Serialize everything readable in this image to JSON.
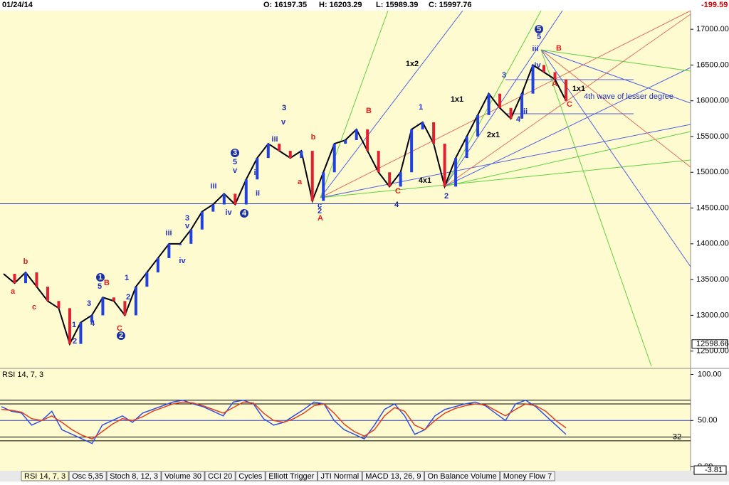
{
  "header": {
    "date": "01/24/14",
    "open": "O: 16197.35",
    "high": "H: 16203.29",
    "low": "L: 15989.39",
    "close": "C: 15997.76",
    "change": "-199.59"
  },
  "chart_data": [
    {
      "type": "line",
      "color": "#000000",
      "values": [
        13580,
        13450,
        13600,
        13400,
        13200,
        13100,
        12600,
        12900,
        13000,
        13250,
        13200,
        13000,
        13400,
        13600,
        13800,
        14000,
        14000,
        14200,
        14450,
        14550,
        14700,
        14550,
        14900,
        15200,
        15400,
        15300,
        15200,
        15300,
        14600,
        15000,
        15400,
        15450,
        15600,
        15300,
        15000,
        14800,
        15000,
        15600,
        15700,
        15400,
        14800,
        15200,
        15500,
        15800,
        16100,
        15900,
        15750,
        16100,
        16500,
        16400,
        16300,
        16000
      ],
      "ylim": [
        12268,
        17260
      ],
      "yticks": [
        {
          "value": 12500,
          "label": "12500.00"
        },
        {
          "value": 13000,
          "label": "13000.00"
        },
        {
          "value": 13500,
          "label": "13500.00"
        },
        {
          "value": 14000,
          "label": "14000.00"
        },
        {
          "value": 14500,
          "label": "14500.00"
        },
        {
          "value": 15000,
          "label": "15000.00"
        },
        {
          "value": 15500,
          "label": "15500.00"
        },
        {
          "value": 16000,
          "label": "16000.00"
        },
        {
          "value": 16500,
          "label": "16500.00"
        },
        {
          "value": 17000,
          "label": "17000.00"
        }
      ],
      "marker": {
        "value": 12598.66,
        "label": "12598.66"
      },
      "hline": 14560
    },
    {
      "type": "line",
      "title": "RSI 14, 7, 3",
      "series": [
        {
          "name": "RSI",
          "color": "#3050e0",
          "values": [
            65,
            60,
            58,
            45,
            50,
            60,
            40,
            35,
            30,
            25,
            45,
            50,
            55,
            48,
            58,
            62,
            66,
            70,
            72,
            68,
            65,
            60,
            55,
            70,
            72,
            68,
            52,
            45,
            48,
            55,
            62,
            70,
            68,
            50,
            40,
            35,
            30,
            45,
            62,
            68,
            55,
            35,
            40,
            55,
            62,
            65,
            68,
            70,
            66,
            58,
            50,
            68,
            72,
            65,
            55,
            45,
            35
          ]
        },
        {
          "name": "Signal",
          "color": "#e04020",
          "values": [
            62,
            61,
            59,
            52,
            50,
            55,
            48,
            40,
            34,
            30,
            38,
            46,
            52,
            50,
            54,
            60,
            64,
            68,
            70,
            69,
            66,
            62,
            58,
            64,
            70,
            69,
            58,
            50,
            48,
            52,
            58,
            66,
            68,
            58,
            46,
            38,
            33,
            40,
            55,
            64,
            60,
            45,
            40,
            50,
            58,
            63,
            66,
            68,
            67,
            61,
            55,
            62,
            68,
            66,
            60,
            50,
            42
          ]
        }
      ],
      "ylim": [
        -3,
        105
      ],
      "yticks": [
        {
          "value": 100,
          "label": "100.00"
        },
        {
          "value": 50,
          "label": "50.00"
        },
        {
          "value": 0,
          "label": "0.00"
        }
      ],
      "guides": [
        72,
        68,
        32,
        28
      ],
      "last": {
        "value": -3.81,
        "label": "-3.81"
      },
      "level_label": "32"
    }
  ],
  "annotations": [
    "a",
    "b",
    "c",
    "1",
    "5",
    "B",
    "3",
    "4",
    "1",
    "2",
    "C",
    "2",
    "1",
    "2",
    "iii",
    "iv",
    "v",
    "3",
    "iii",
    "iv",
    "v",
    "5",
    "3",
    "i",
    "ii",
    "4",
    "3",
    "v",
    "iii",
    "b",
    "a",
    "c",
    "2",
    "A",
    "4",
    "B",
    "C",
    "1",
    "2",
    "4x1",
    "2x1",
    "1x1",
    "1x2",
    "3",
    "i",
    "ii",
    "4",
    "5",
    "5",
    "iii",
    "iv",
    "B",
    "A",
    "C",
    "1x1",
    "4th wave of lesser degree"
  ],
  "tabs": [
    "RSI 14, 7, 3",
    "Osc 5,35",
    "Stoch 8, 12, 3",
    "Volume 30",
    "CCI 20",
    "Cycles",
    "Elliott Trigger",
    "JTI Normal",
    "MACD 13, 26, 9",
    "On Balance Volume",
    "Money Flow 7"
  ]
}
